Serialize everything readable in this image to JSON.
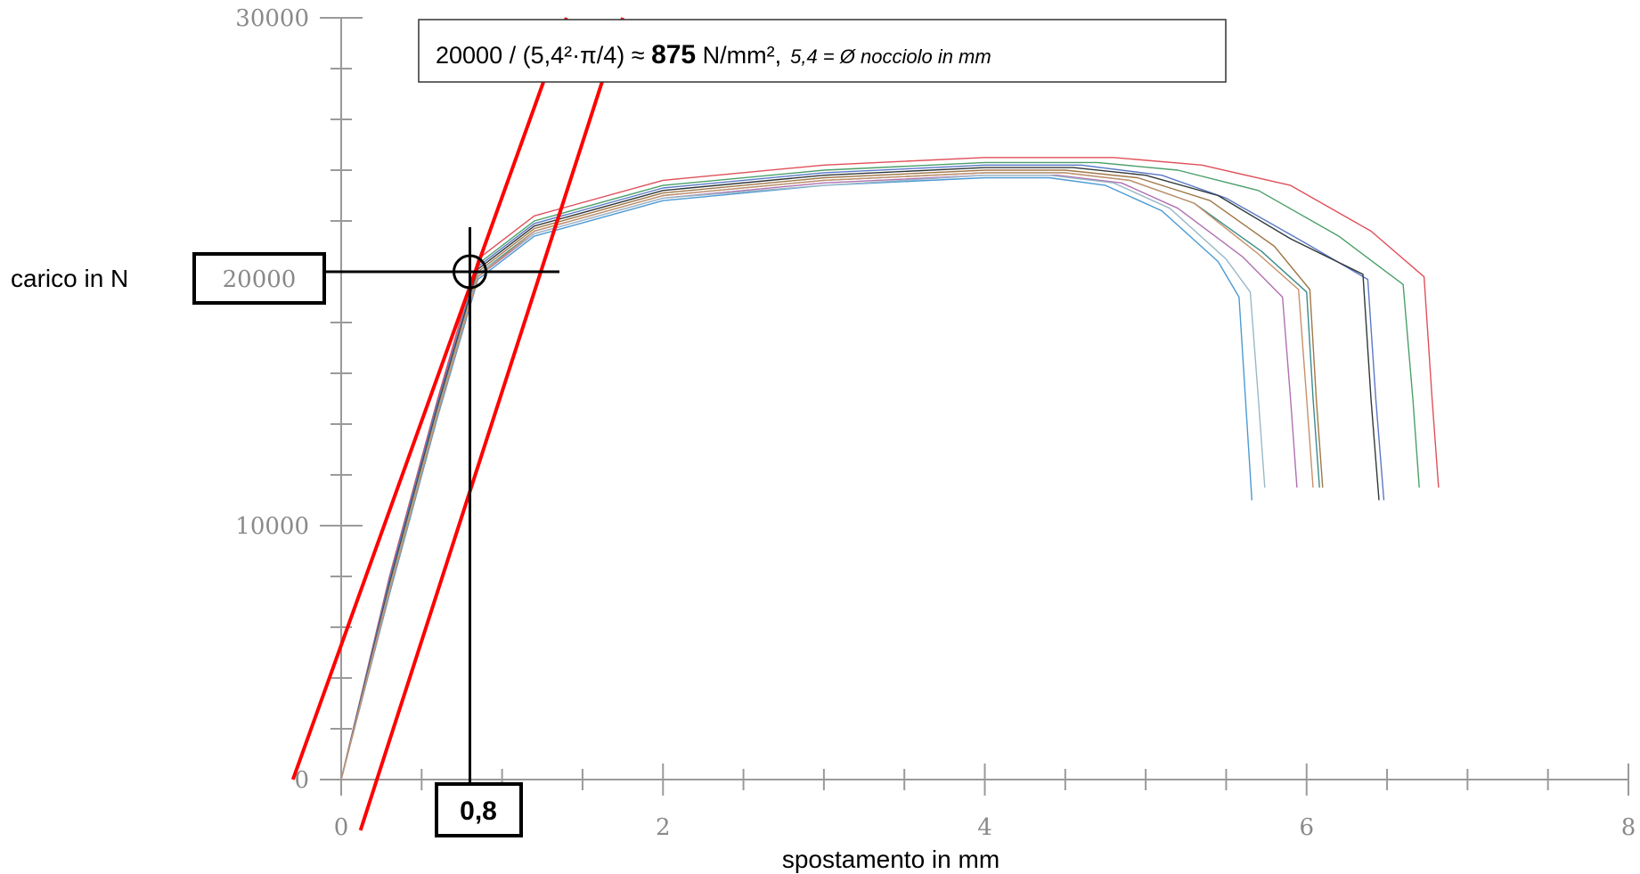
{
  "chart_data": {
    "type": "line",
    "title": "",
    "xlabel": "spostamento in mm",
    "ylabel": "carico in  N",
    "xlim": [
      0,
      8
    ],
    "ylim": [
      0,
      30000
    ],
    "x_ticks": [
      0,
      2,
      4,
      6,
      8
    ],
    "x_tick_labels": [
      "0",
      "2",
      "4",
      "6",
      "8"
    ],
    "y_ticks": [
      0,
      10000,
      20000,
      30000
    ],
    "y_tick_labels": [
      "0",
      "10000",
      "20000",
      "30000"
    ],
    "x_minor_step": 0.5,
    "y_minor_step": 2000,
    "series": [
      {
        "color": "#e0505a",
        "x": [
          0,
          0.3,
          0.6,
          0.85,
          1.2,
          2,
          3,
          4,
          4.8,
          5.35,
          5.9,
          6.4,
          6.73,
          6.78,
          6.82
        ],
        "y": [
          0,
          8000,
          15000,
          20500,
          22200,
          23600,
          24200,
          24500,
          24500,
          24200,
          23400,
          21600,
          19800,
          15000,
          11500
        ]
      },
      {
        "color": "#4aa06a",
        "x": [
          0,
          0.3,
          0.6,
          0.85,
          1.2,
          2,
          3,
          4,
          4.7,
          5.2,
          5.7,
          6.2,
          6.6,
          6.66,
          6.7
        ],
        "y": [
          0,
          7800,
          14800,
          20300,
          22000,
          23400,
          24000,
          24300,
          24300,
          24000,
          23200,
          21400,
          19500,
          15000,
          11500
        ]
      },
      {
        "color": "#5a78c8",
        "x": [
          0,
          0.3,
          0.6,
          0.85,
          1.2,
          2,
          3,
          4,
          4.6,
          5.1,
          5.5,
          6.0,
          6.38,
          6.43,
          6.48
        ],
        "y": [
          0,
          7900,
          14900,
          20200,
          21900,
          23300,
          23900,
          24200,
          24200,
          23800,
          22900,
          21100,
          19700,
          15000,
          11000
        ]
      },
      {
        "color": "#303838",
        "x": [
          0,
          0.3,
          0.6,
          0.85,
          1.2,
          2,
          3,
          4,
          4.55,
          5.0,
          5.45,
          5.9,
          6.35,
          6.4,
          6.45
        ],
        "y": [
          0,
          7700,
          14700,
          20100,
          21800,
          23200,
          23800,
          24100,
          24100,
          23800,
          23000,
          21300,
          19900,
          15000,
          11000
        ]
      },
      {
        "color": "#a07848",
        "x": [
          0,
          0.3,
          0.6,
          0.85,
          1.2,
          2,
          3,
          4,
          4.5,
          4.95,
          5.4,
          5.8,
          6.02,
          6.06,
          6.1
        ],
        "y": [
          0,
          7600,
          14600,
          20000,
          21700,
          23100,
          23700,
          24000,
          24000,
          23700,
          22800,
          21000,
          19300,
          15000,
          11500
        ]
      },
      {
        "color": "#3c8c8c",
        "x": [
          0,
          0.3,
          0.6,
          0.85,
          1.2,
          2,
          3,
          4,
          4.5,
          4.9,
          5.3,
          5.72,
          6.0,
          6.04,
          6.08
        ],
        "y": [
          0,
          7500,
          14500,
          19900,
          21600,
          23000,
          23600,
          23900,
          23900,
          23600,
          22700,
          20800,
          19200,
          15000,
          11500
        ]
      },
      {
        "color": "#b070b0",
        "x": [
          0,
          0.3,
          0.6,
          0.85,
          1.2,
          2,
          3,
          4,
          4.45,
          4.85,
          5.2,
          5.6,
          5.85,
          5.9,
          5.94
        ],
        "y": [
          0,
          7400,
          14400,
          19800,
          21500,
          22900,
          23500,
          23800,
          23800,
          23500,
          22500,
          20600,
          19000,
          15000,
          11500
        ]
      },
      {
        "color": "#4c9ad4",
        "x": [
          0,
          0.3,
          0.6,
          0.85,
          1.2,
          2,
          3,
          4,
          4.4,
          4.75,
          5.1,
          5.45,
          5.58,
          5.62,
          5.66
        ],
        "y": [
          0,
          7300,
          14300,
          19700,
          21400,
          22800,
          23400,
          23700,
          23700,
          23400,
          22400,
          20400,
          19000,
          15000,
          11000
        ]
      },
      {
        "color": "#9ab8c8",
        "x": [
          0,
          0.3,
          0.6,
          0.85,
          1.2,
          2,
          3,
          4,
          4.4,
          4.8,
          5.15,
          5.5,
          5.65,
          5.7,
          5.74
        ],
        "y": [
          0,
          7500,
          14500,
          19900,
          21500,
          22900,
          23400,
          23800,
          23800,
          23500,
          22500,
          20500,
          19200,
          15000,
          11500
        ]
      },
      {
        "color": "#c8906a",
        "x": [
          0,
          0.3,
          0.6,
          0.85,
          1.2,
          2,
          3,
          4,
          4.5,
          4.9,
          5.3,
          5.7,
          5.95,
          6.0,
          6.04
        ],
        "y": [
          0,
          7400,
          14400,
          19800,
          21600,
          23000,
          23600,
          23900,
          23900,
          23600,
          22700,
          20700,
          19300,
          15000,
          11500
        ]
      }
    ],
    "construction_lines": [
      {
        "color": "#ff0000",
        "x": [
          -0.3,
          1.4
        ],
        "y": [
          0,
          30000
        ]
      },
      {
        "color": "#ff0000",
        "x": [
          0.12,
          1.75
        ],
        "y": [
          -2000,
          30000
        ]
      }
    ],
    "marker_point": {
      "x": 0.8,
      "y": 20000
    },
    "annotations": {
      "formula_main": "20000 / (5,4²·π/4) ≈ ",
      "formula_value": "875",
      "formula_unit": " N/mm²,",
      "formula_note": "5,4 = Ø nocciolo in mm",
      "y_marker_label": "20000",
      "x_marker_label": "0,8"
    }
  }
}
